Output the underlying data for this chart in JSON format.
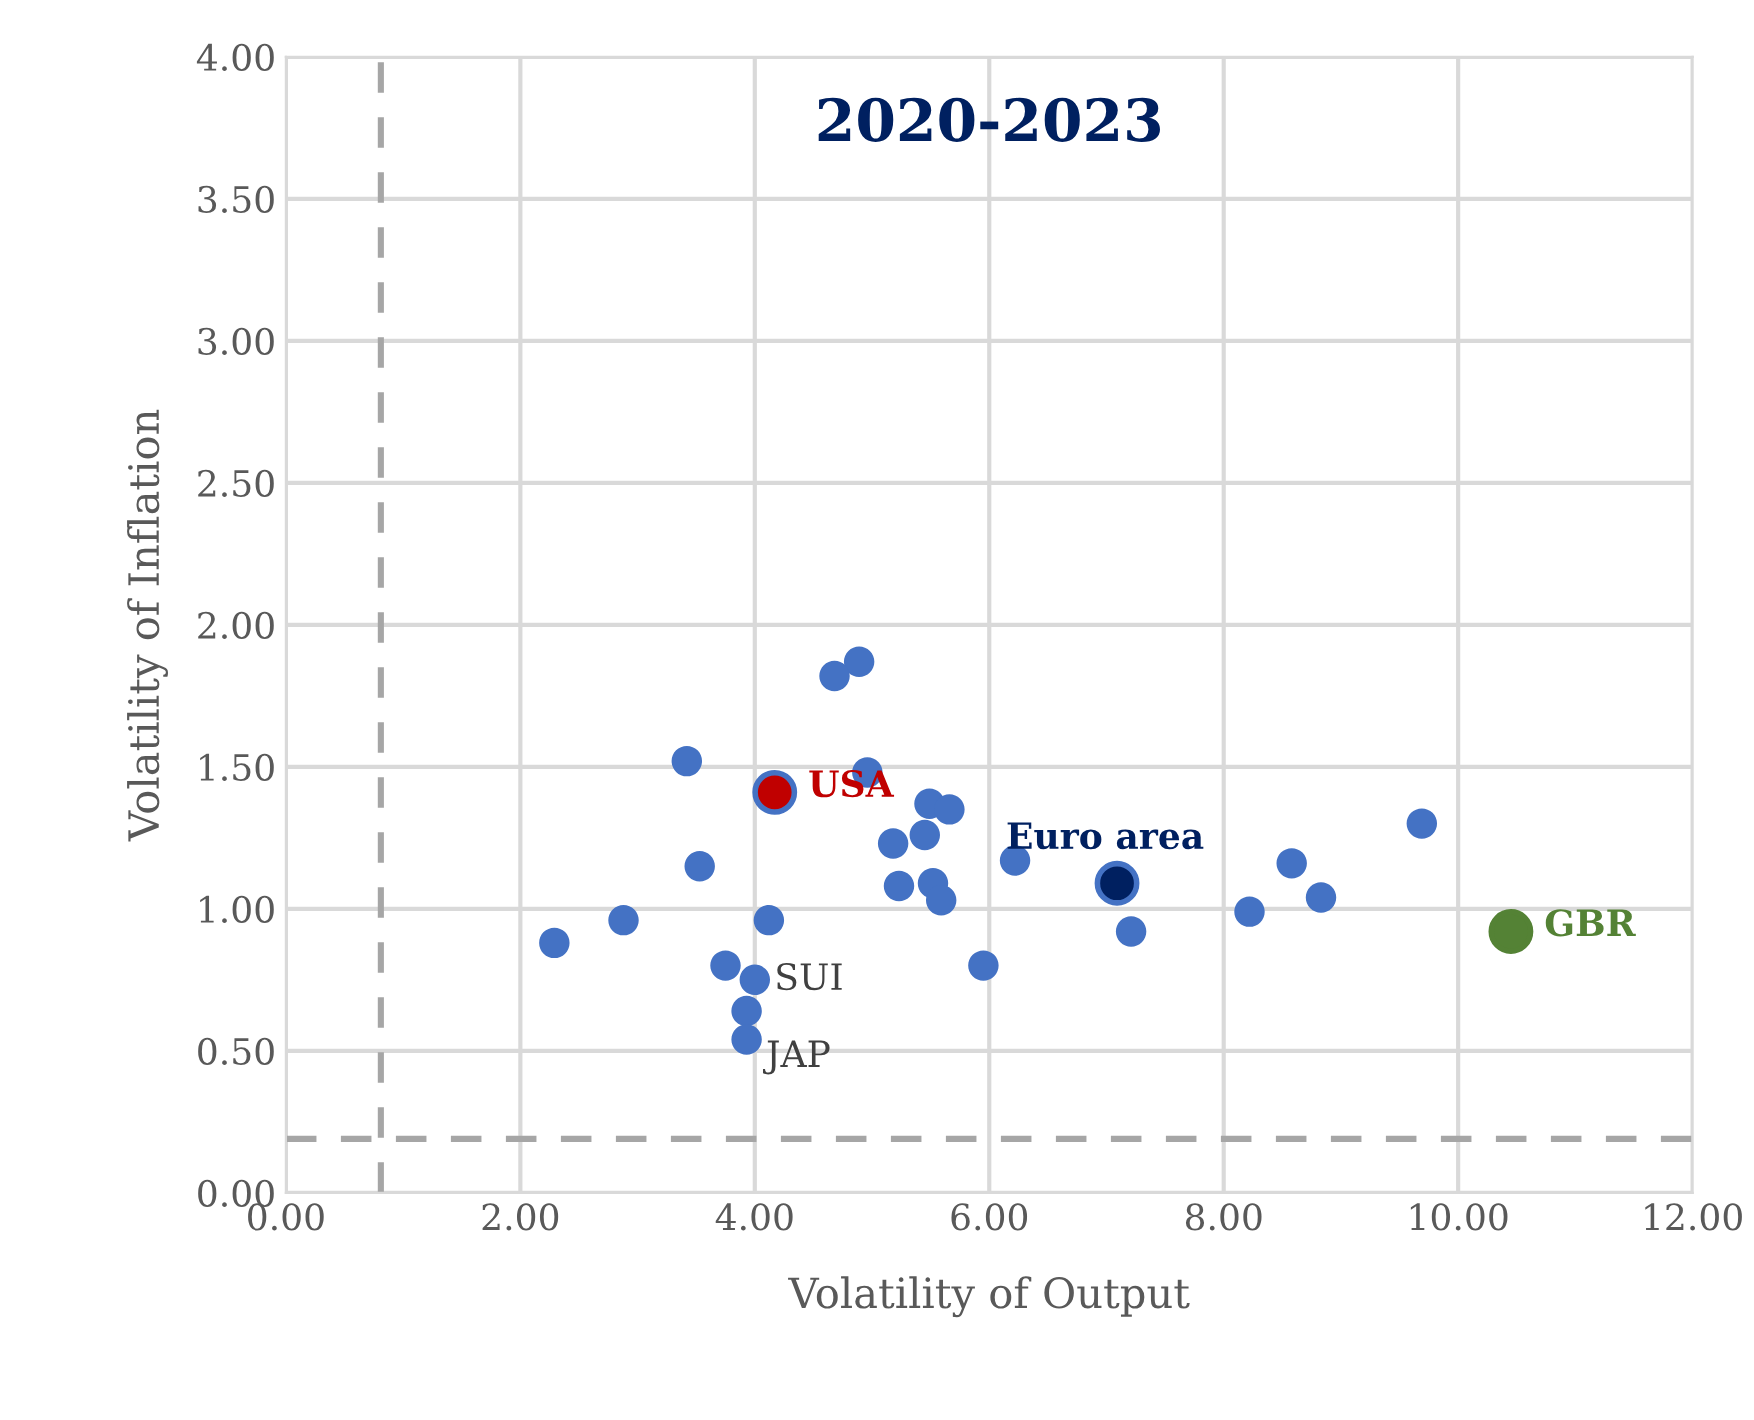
{
  "chart_data": {
    "type": "scatter",
    "title": "2020-2023",
    "xlabel": "Volatility of Output",
    "ylabel": "Volatility of Inflation",
    "xlim": [
      0,
      12
    ],
    "ylim": [
      0,
      4
    ],
    "xticks": [
      {
        "value": 0,
        "label": "0.00"
      },
      {
        "value": 2,
        "label": "2.00"
      },
      {
        "value": 4,
        "label": "4.00"
      },
      {
        "value": 6,
        "label": "6.00"
      },
      {
        "value": 8,
        "label": "8.00"
      },
      {
        "value": 10,
        "label": "10.00"
      },
      {
        "value": 12,
        "label": "12.00"
      }
    ],
    "yticks": [
      {
        "value": 0,
        "label": "0.00"
      },
      {
        "value": 0.5,
        "label": "0.50"
      },
      {
        "value": 1,
        "label": "1.00"
      },
      {
        "value": 1.5,
        "label": "1.50"
      },
      {
        "value": 2,
        "label": "2.00"
      },
      {
        "value": 2.5,
        "label": "2.50"
      },
      {
        "value": 3,
        "label": "3.00"
      },
      {
        "value": 3.5,
        "label": "3.50"
      },
      {
        "value": 4,
        "label": "4.00"
      }
    ],
    "grid": true,
    "legend": false,
    "marker": "circle",
    "series": [
      {
        "color": "#4472c4",
        "x": [
          4.89,
          4.68,
          3.42,
          4.96,
          5.49,
          5.66,
          5.45,
          5.18,
          3.53,
          6.22,
          5.23,
          5.52,
          5.59,
          2.88,
          2.29,
          4.12,
          5.95,
          3.75,
          4.0,
          3.93,
          3.93,
          7.21,
          8.22,
          8.58,
          8.83,
          9.69
        ],
        "values": [
          1.87,
          1.82,
          1.52,
          1.48,
          1.37,
          1.35,
          1.26,
          1.23,
          1.15,
          1.17,
          1.08,
          1.09,
          1.03,
          0.96,
          0.88,
          0.96,
          0.8,
          0.8,
          0.75,
          0.64,
          0.54,
          0.92,
          0.99,
          1.16,
          1.04,
          1.3
        ]
      },
      {
        "name": "USA",
        "color": "#c00000",
        "x": [
          4.17
        ],
        "values": [
          1.41
        ]
      },
      {
        "name": "Euro area",
        "color": "#002060",
        "x": [
          7.09
        ],
        "values": [
          1.09
        ]
      },
      {
        "name": "GBR",
        "color": "#548235",
        "x": [
          10.45
        ],
        "values": [
          0.92
        ]
      }
    ],
    "annotations": [
      {
        "text": "SUI",
        "x": 4.0,
        "y": 0.75
      },
      {
        "text": "JAP",
        "x": 3.93,
        "y": 0.54
      }
    ],
    "ref_lines": [
      {
        "axis": "x",
        "value": 0.81,
        "color": "#a6a6a6",
        "line_style": "dashed"
      },
      {
        "axis": "y",
        "value": 0.19,
        "color": "#a6a6a6",
        "line_style": "dashed"
      }
    ]
  }
}
